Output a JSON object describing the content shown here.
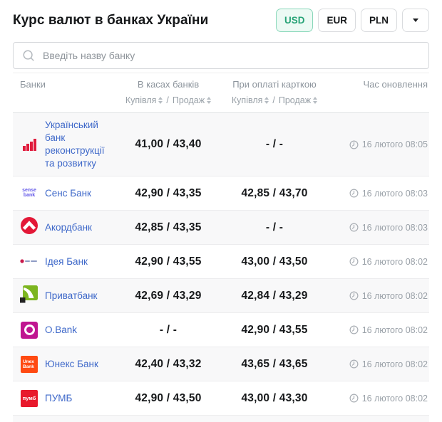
{
  "page": {
    "title": "Курс валют в банках України"
  },
  "currency_tabs": [
    {
      "label": "USD",
      "active": true
    },
    {
      "label": "EUR",
      "active": false
    },
    {
      "label": "PLN",
      "active": false
    }
  ],
  "dropdown": {
    "icon": "chevron-down-icon"
  },
  "search": {
    "placeholder": "Введіть назву банку",
    "icon": "search-icon"
  },
  "colors": {
    "accent_green": "#27a376",
    "accent_green_bg": "#ecfaf4",
    "accent_green_border": "#8bd8bb",
    "link_blue": "#3e68c9",
    "row_alt_bg": "#f8f8f9",
    "muted_text": "#8d959d"
  },
  "table": {
    "columns": {
      "bank": "Банки",
      "cash": "В касах банків",
      "card": "При оплаті карткою",
      "time": "Час оновлення"
    },
    "subheader": {
      "buy": "Купівля",
      "sep": "/",
      "sell": "Продаж",
      "sort_icon": "sort-icon"
    },
    "time_icon": "clock-icon",
    "rows": [
      {
        "bank": "Український банк реконструкції та розвитку",
        "logo": "ubrr",
        "cash": "41,00 / 43,40",
        "card": "- / -",
        "time": "16 лютого 08:05"
      },
      {
        "bank": "Сенс Банк",
        "logo": "sense",
        "cash": "42,90 / 43,35",
        "card": "42,85 / 43,70",
        "time": "16 лютого 08:03"
      },
      {
        "bank": "Акордбанк",
        "logo": "accord",
        "cash": "42,85 / 43,35",
        "card": "- / -",
        "time": "16 лютого 08:03"
      },
      {
        "bank": "Ідея Банк",
        "logo": "idea",
        "cash": "42,90 / 43,55",
        "card": "43,00 / 43,50",
        "time": "16 лютого 08:02"
      },
      {
        "bank": "Приватбанк",
        "logo": "privat",
        "cash": "42,69 / 43,29",
        "card": "42,84 / 43,29",
        "time": "16 лютого 08:02"
      },
      {
        "bank": "O.Bank",
        "logo": "obank",
        "cash": "- / -",
        "card": "42,90 / 43,55",
        "time": "16 лютого 08:02"
      },
      {
        "bank": "Юнекс Банк",
        "logo": "unex",
        "cash": "42,40 / 43,32",
        "card": "43,65 / 43,65",
        "time": "16 лютого 08:02"
      },
      {
        "bank": "ПУМБ",
        "logo": "pumb",
        "cash": "42,90 / 43,50",
        "card": "43,00 / 43,30",
        "time": "16 лютого 08:02"
      }
    ],
    "logo_texts": {
      "sense_line1": "sense",
      "sense_line2": "bank",
      "unex_line1": "Unex",
      "unex_line2": "Bank",
      "pumb": "пумб"
    }
  }
}
